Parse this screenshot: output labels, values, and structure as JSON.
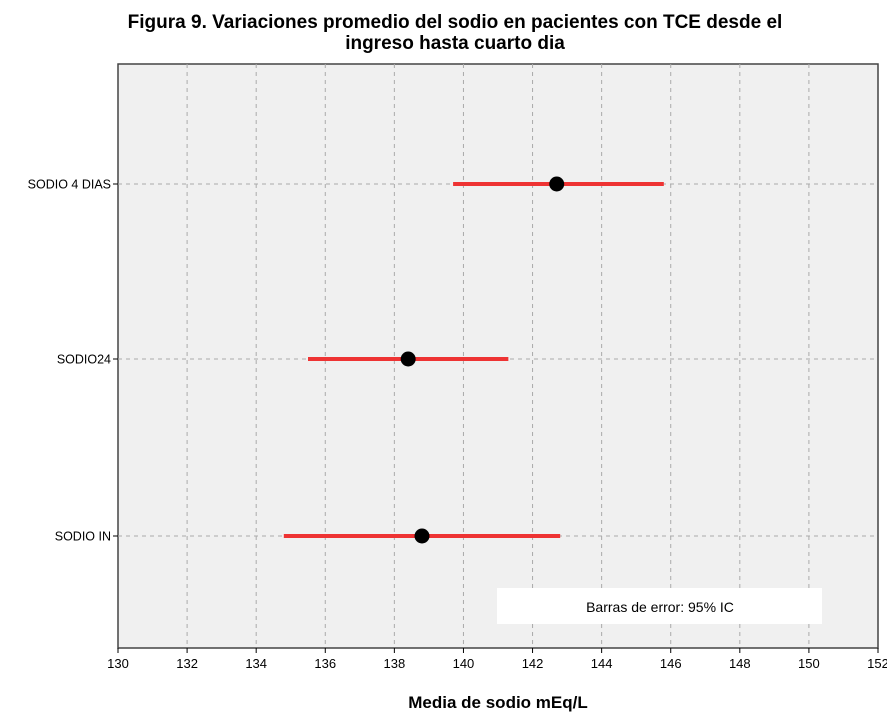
{
  "chart_data": {
    "type": "scatter",
    "title_line1": "Figura 9. Variaciones promedio del sodio en pacientes con TCE desde el",
    "title_line2": "ingreso hasta cuarto dia",
    "xlabel": "Media de sodio mEq/L",
    "ylabel": "",
    "xlim": [
      130,
      152
    ],
    "xticks": [
      "130",
      "132",
      "134",
      "136",
      "138",
      "140",
      "142",
      "144",
      "146",
      "148",
      "150",
      "152"
    ],
    "categories": [
      "SODIO 4 DIAS",
      "SODIO24",
      "SODIO IN"
    ],
    "means": [
      142.7,
      138.4,
      138.8
    ],
    "ci_lower": [
      139.7,
      135.5,
      134.8
    ],
    "ci_upper": [
      145.8,
      141.3,
      142.8
    ],
    "legend_text": "Barras de error: 95% IC",
    "legend_position": "bottom-right",
    "grid": true,
    "colors": {
      "error_bar": "#ee3333",
      "marker": "#000000",
      "plot_bg": "#f0f0f0",
      "grid": "#aaaaaa"
    }
  }
}
